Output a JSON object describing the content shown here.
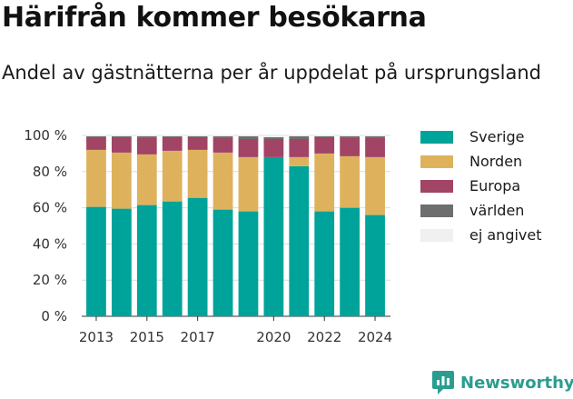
{
  "header": {
    "title": "Härifrån kommer besökarna",
    "subtitle": "Andel av gästnätterna per år uppdelat på ursprungsland"
  },
  "brand": {
    "name": "Newsworthy",
    "color": "#2a9d8f",
    "icon": "newsworthy-logo-icon"
  },
  "chart_data": {
    "type": "bar",
    "stacked": true,
    "categories": [
      "2013",
      "2014",
      "2015",
      "2016",
      "2017",
      "2018",
      "2019",
      "2020",
      "2021",
      "2022",
      "2023",
      "2024"
    ],
    "x_tick_labels": [
      "2013",
      "2015",
      "2017",
      "2020",
      "2022",
      "2024"
    ],
    "y_ticks": [
      "0 %",
      "20 %",
      "40 %",
      "60 %",
      "80 %",
      "100 %"
    ],
    "ylim": [
      0,
      100
    ],
    "grid": true,
    "legend_position": "right",
    "series": [
      {
        "name": "Sverige",
        "color": "#00a39a",
        "values": [
          60.5,
          59.5,
          61.5,
          63.5,
          65.5,
          59,
          58,
          88,
          83,
          58,
          60,
          56
        ]
      },
      {
        "name": "Norden",
        "color": "#deb25c",
        "values": [
          31.5,
          31,
          28,
          28,
          26.5,
          31.5,
          30,
          0,
          5,
          32,
          28.5,
          32
        ]
      },
      {
        "name": "Europa",
        "color": "#a14466",
        "values": [
          7,
          8.5,
          9,
          7.5,
          7,
          8,
          10,
          10,
          10,
          9,
          10,
          10.5
        ]
      },
      {
        "name": "världen",
        "color": "#6e6e6e",
        "values": [
          0.5,
          0.5,
          1,
          0.5,
          0.5,
          1,
          1.5,
          1,
          1.5,
          0.5,
          1,
          1
        ]
      },
      {
        "name": "ej angivet",
        "color": "#f0f0f0",
        "values": [
          0.5,
          0.5,
          0.5,
          0.5,
          0.5,
          0.5,
          0.5,
          1,
          0.5,
          0.5,
          0.5,
          0.5
        ]
      }
    ]
  }
}
